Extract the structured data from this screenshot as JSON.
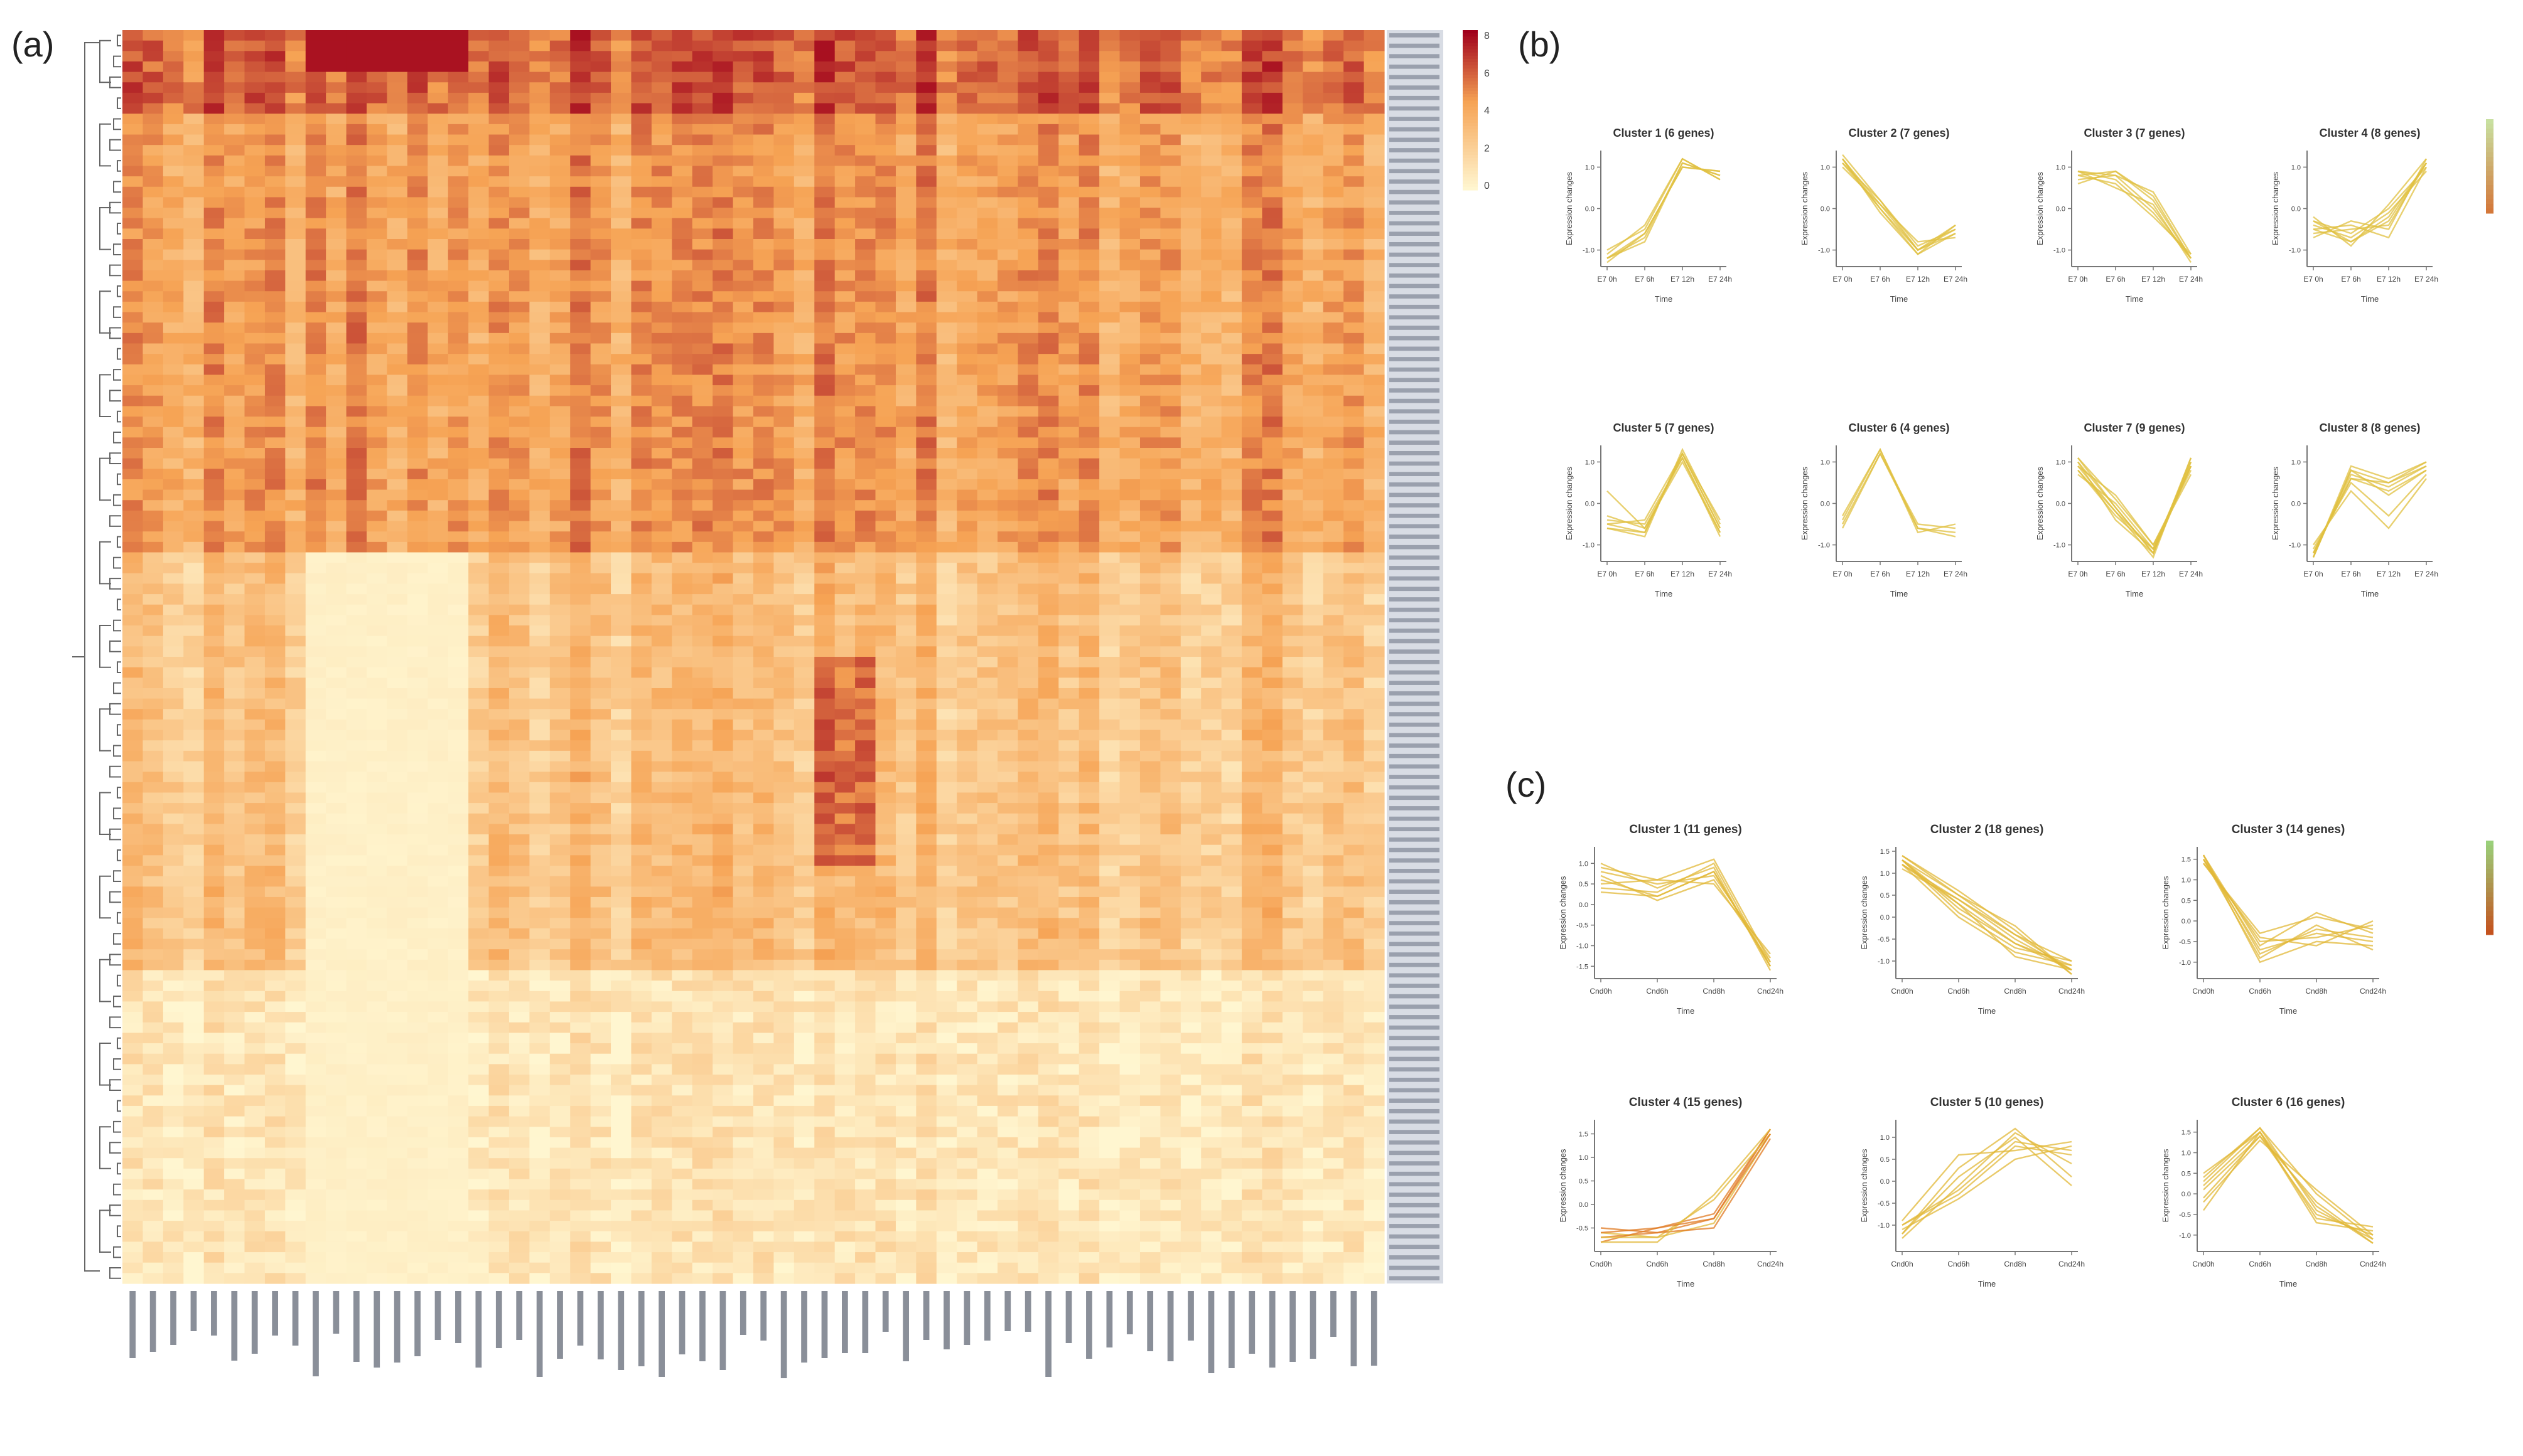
{
  "panels": {
    "a": "(a)",
    "b": "(b)",
    "c": "(c)"
  },
  "colors": {
    "heat_low": "#fff6d0",
    "heat_mid": "#f6a354",
    "heat_high": "#a0001b",
    "line_b": "#e0c040",
    "line_c": "#e2b838",
    "line_c_dark": "#e07a22"
  },
  "heatmap": {
    "type": "heatmap",
    "n_rows": 120,
    "n_cols": 62,
    "legend_ticks": [
      "8",
      "6",
      "4",
      "2",
      "0"
    ],
    "dendrogram": "rows"
  },
  "chart_data": [
    {
      "type": "line",
      "panel": "b",
      "title": "Cluster 1 (6 genes)",
      "xlabel": "Time",
      "ylabel": "Expression changes",
      "categories": [
        "E7 0h",
        "E7 6h",
        "E7 12h",
        "E7 24h"
      ],
      "yticks": [
        "1.0",
        "0.0",
        "-1.0"
      ],
      "ylim": [
        -1.4,
        1.4
      ],
      "series": [
        {
          "values": [
            -1.2,
            -0.7,
            1.1,
            0.8
          ]
        },
        {
          "values": [
            -1.1,
            -0.4,
            1.2,
            0.7
          ]
        },
        {
          "values": [
            -1.3,
            -0.6,
            1.0,
            0.9
          ]
        },
        {
          "values": [
            -1.2,
            -0.8,
            1.1,
            0.8
          ]
        },
        {
          "values": [
            -1.0,
            -0.5,
            1.2,
            0.7
          ]
        },
        {
          "values": [
            -1.2,
            -0.6,
            1.0,
            0.9
          ]
        }
      ]
    },
    {
      "type": "line",
      "panel": "b",
      "title": "Cluster 2 (7 genes)",
      "xlabel": "Time",
      "ylabel": "Expression changes",
      "categories": [
        "E7 0h",
        "E7 6h",
        "E7 12h",
        "E7 24h"
      ],
      "yticks": [
        "1.0",
        "0.0",
        "-1.0"
      ],
      "ylim": [
        -1.4,
        1.4
      ],
      "series": [
        {
          "values": [
            1.2,
            0.1,
            -1.0,
            -0.4
          ]
        },
        {
          "values": [
            1.1,
            0.0,
            -1.1,
            -0.6
          ]
        },
        {
          "values": [
            1.3,
            0.2,
            -0.9,
            -0.5
          ]
        },
        {
          "values": [
            1.2,
            -0.1,
            -1.1,
            -0.4
          ]
        },
        {
          "values": [
            1.0,
            0.1,
            -0.8,
            -0.7
          ]
        },
        {
          "values": [
            1.2,
            0.0,
            -1.0,
            -0.5
          ]
        },
        {
          "values": [
            1.1,
            0.2,
            -1.0,
            -0.6
          ]
        }
      ]
    },
    {
      "type": "line",
      "panel": "b",
      "title": "Cluster 3 (7 genes)",
      "xlabel": "Time",
      "ylabel": "Expression changes",
      "categories": [
        "E7 0h",
        "E7 6h",
        "E7 12h",
        "E7 24h"
      ],
      "yticks": [
        "1.0",
        "0.0",
        "-1.0"
      ],
      "ylim": [
        -1.4,
        1.4
      ],
      "series": [
        {
          "values": [
            0.8,
            0.9,
            0.2,
            -1.2
          ]
        },
        {
          "values": [
            0.9,
            0.7,
            -0.1,
            -1.2
          ]
        },
        {
          "values": [
            0.7,
            0.8,
            0.4,
            -1.1
          ]
        },
        {
          "values": [
            0.9,
            0.5,
            0.1,
            -1.3
          ]
        },
        {
          "values": [
            0.6,
            0.9,
            0.3,
            -1.2
          ]
        },
        {
          "values": [
            0.8,
            0.6,
            -0.2,
            -1.1
          ]
        },
        {
          "values": [
            0.9,
            0.8,
            0.0,
            -1.2
          ]
        }
      ]
    },
    {
      "type": "line",
      "panel": "b",
      "title": "Cluster 4 (8 genes)",
      "xlabel": "Time",
      "ylabel": "Expression changes",
      "categories": [
        "E7 0h",
        "E7 6h",
        "E7 12h",
        "E7 24h"
      ],
      "yticks": [
        "1.0",
        "0.0",
        "-1.0"
      ],
      "ylim": [
        -1.4,
        1.4
      ],
      "series": [
        {
          "values": [
            -0.3,
            -0.8,
            -0.2,
            1.1
          ]
        },
        {
          "values": [
            -0.5,
            -0.4,
            -0.7,
            1.0
          ]
        },
        {
          "values": [
            -0.2,
            -0.9,
            0.1,
            1.2
          ]
        },
        {
          "values": [
            -0.6,
            -0.5,
            -0.4,
            1.1
          ]
        },
        {
          "values": [
            -0.4,
            -0.7,
            -0.1,
            0.9
          ]
        },
        {
          "values": [
            -0.7,
            -0.3,
            -0.5,
            1.2
          ]
        },
        {
          "values": [
            -0.3,
            -0.6,
            0.0,
            1.0
          ]
        },
        {
          "values": [
            -0.5,
            -0.8,
            -0.3,
            1.1
          ]
        }
      ]
    },
    {
      "type": "line",
      "panel": "b",
      "title": "Cluster 5 (7 genes)",
      "xlabel": "Time",
      "ylabel": "Expression changes",
      "categories": [
        "E7 0h",
        "E7 6h",
        "E7 12h",
        "E7 24h"
      ],
      "yticks": [
        "1.0",
        "0.0",
        "-1.0"
      ],
      "ylim": [
        -1.4,
        1.4
      ],
      "series": [
        {
          "values": [
            -0.5,
            -0.7,
            1.2,
            -0.6
          ]
        },
        {
          "values": [
            -0.4,
            -0.5,
            1.1,
            -0.8
          ]
        },
        {
          "values": [
            -0.6,
            -0.8,
            1.3,
            -0.5
          ]
        },
        {
          "values": [
            -0.3,
            -0.6,
            1.0,
            -0.7
          ]
        },
        {
          "values": [
            -0.5,
            -0.4,
            1.2,
            -0.6
          ]
        },
        {
          "values": [
            0.3,
            -0.6,
            1.1,
            -0.7
          ]
        },
        {
          "values": [
            -0.6,
            -0.7,
            1.2,
            -0.4
          ]
        }
      ]
    },
    {
      "type": "line",
      "panel": "b",
      "title": "Cluster 6 (4 genes)",
      "xlabel": "Time",
      "ylabel": "Expression changes",
      "categories": [
        "E7 0h",
        "E7 6h",
        "E7 12h",
        "E7 24h"
      ],
      "yticks": [
        "1.0",
        "0.0",
        "-1.0"
      ],
      "ylim": [
        -1.4,
        1.4
      ],
      "series": [
        {
          "values": [
            -0.4,
            1.3,
            -0.6,
            -0.7
          ]
        },
        {
          "values": [
            -0.6,
            1.2,
            -0.5,
            -0.6
          ]
        },
        {
          "values": [
            -0.3,
            1.3,
            -0.7,
            -0.5
          ]
        },
        {
          "values": [
            -0.5,
            1.2,
            -0.6,
            -0.8
          ]
        }
      ]
    },
    {
      "type": "line",
      "panel": "b",
      "title": "Cluster 7 (9 genes)",
      "xlabel": "Time",
      "ylabel": "Expression changes",
      "categories": [
        "E7 0h",
        "E7 6h",
        "E7 12h",
        "E7 24h"
      ],
      "yticks": [
        "1.0",
        "0.0",
        "-1.0"
      ],
      "ylim": [
        -1.4,
        1.4
      ],
      "series": [
        {
          "values": [
            1.0,
            -0.1,
            -1.2,
            0.9
          ]
        },
        {
          "values": [
            0.8,
            -0.3,
            -1.1,
            1.0
          ]
        },
        {
          "values": [
            1.1,
            0.1,
            -1.0,
            0.8
          ]
        },
        {
          "values": [
            0.9,
            -0.2,
            -1.3,
            1.1
          ]
        },
        {
          "values": [
            0.7,
            0.0,
            -1.1,
            0.9
          ]
        },
        {
          "values": [
            1.0,
            -0.4,
            -1.2,
            1.0
          ]
        },
        {
          "values": [
            0.9,
            0.2,
            -1.0,
            0.7
          ]
        },
        {
          "values": [
            1.1,
            -0.1,
            -1.2,
            1.1
          ]
        },
        {
          "values": [
            0.8,
            -0.2,
            -1.1,
            0.9
          ]
        }
      ]
    },
    {
      "type": "line",
      "panel": "b",
      "title": "Cluster 8 (8 genes)",
      "xlabel": "Time",
      "ylabel": "Expression changes",
      "categories": [
        "E7 0h",
        "E7 6h",
        "E7 12h",
        "E7 24h"
      ],
      "yticks": [
        "1.0",
        "0.0",
        "-1.0"
      ],
      "ylim": [
        -1.4,
        1.4
      ],
      "series": [
        {
          "values": [
            -1.3,
            0.8,
            0.5,
            0.9
          ]
        },
        {
          "values": [
            -1.2,
            0.6,
            0.3,
            0.8
          ]
        },
        {
          "values": [
            -1.3,
            0.9,
            0.6,
            1.0
          ]
        },
        {
          "values": [
            -1.1,
            0.5,
            -0.3,
            0.7
          ]
        },
        {
          "values": [
            -1.2,
            0.7,
            0.4,
            0.9
          ]
        },
        {
          "values": [
            -1.0,
            0.3,
            -0.6,
            0.6
          ]
        },
        {
          "values": [
            -1.3,
            0.8,
            0.2,
            0.8
          ]
        },
        {
          "values": [
            -1.2,
            0.6,
            0.5,
            1.0
          ]
        }
      ]
    },
    {
      "type": "line",
      "panel": "c",
      "title": "Cluster 1 (11 genes)",
      "xlabel": "Time",
      "ylabel": "Expression changes",
      "categories": [
        "Cnd0h",
        "Cnd6h",
        "Cnd8h",
        "Cnd24h"
      ],
      "yticks": [
        "1.0",
        "0.5",
        "0.0",
        "-0.5",
        "-1.0",
        "-1.5"
      ],
      "ylim": [
        -1.8,
        1.4
      ],
      "series": [
        {
          "values": [
            0.9,
            0.6,
            1.1,
            -1.4
          ]
        },
        {
          "values": [
            0.6,
            0.2,
            0.8,
            -1.5
          ]
        },
        {
          "values": [
            0.8,
            0.5,
            0.7,
            -1.3
          ]
        },
        {
          "values": [
            0.4,
            0.3,
            1.0,
            -1.5
          ]
        },
        {
          "values": [
            0.7,
            0.1,
            0.6,
            -1.4
          ]
        },
        {
          "values": [
            1.0,
            0.4,
            0.9,
            -1.6
          ]
        },
        {
          "values": [
            0.5,
            0.6,
            0.5,
            -1.2
          ]
        },
        {
          "values": [
            0.3,
            0.2,
            0.8,
            -1.5
          ]
        }
      ]
    },
    {
      "type": "line",
      "panel": "c",
      "title": "Cluster 2 (18 genes)",
      "xlabel": "Time",
      "ylabel": "Expression changes",
      "categories": [
        "Cnd0h",
        "Cnd6h",
        "Cnd8h",
        "Cnd24h"
      ],
      "yticks": [
        "1.5",
        "1.0",
        "0.5",
        "0.0",
        "-0.5",
        "-1.0"
      ],
      "ylim": [
        -1.4,
        1.6
      ],
      "series": [
        {
          "values": [
            1.3,
            0.5,
            -0.4,
            -1.2
          ]
        },
        {
          "values": [
            1.2,
            0.3,
            -0.6,
            -1.1
          ]
        },
        {
          "values": [
            1.4,
            0.6,
            -0.3,
            -1.3
          ]
        },
        {
          "values": [
            1.3,
            0.1,
            -0.7,
            -1.0
          ]
        },
        {
          "values": [
            1.1,
            0.4,
            -0.5,
            -1.2
          ]
        },
        {
          "values": [
            1.2,
            0.0,
            -0.8,
            -1.1
          ]
        },
        {
          "values": [
            1.4,
            0.5,
            -0.2,
            -1.3
          ]
        },
        {
          "values": [
            1.3,
            0.2,
            -0.6,
            -1.2
          ]
        },
        {
          "values": [
            1.2,
            0.4,
            -0.4,
            -1.0
          ]
        },
        {
          "values": [
            1.3,
            0.3,
            -0.9,
            -1.2
          ]
        }
      ]
    },
    {
      "type": "line",
      "panel": "c",
      "title": "Cluster 3 (14 genes)",
      "xlabel": "Time",
      "ylabel": "Expression changes",
      "categories": [
        "Cnd0h",
        "Cnd6h",
        "Cnd8h",
        "Cnd24h"
      ],
      "yticks": [
        "1.5",
        "1.0",
        "0.5",
        "0.0",
        "-0.5",
        "-1.0"
      ],
      "ylim": [
        -1.4,
        1.8
      ],
      "series": [
        {
          "values": [
            1.6,
            -0.8,
            -0.2,
            -0.4
          ]
        },
        {
          "values": [
            1.5,
            -0.5,
            -0.4,
            -0.1
          ]
        },
        {
          "values": [
            1.6,
            -1.0,
            -0.5,
            -0.6
          ]
        },
        {
          "values": [
            1.4,
            -0.3,
            0.1,
            -0.2
          ]
        },
        {
          "values": [
            1.5,
            -0.7,
            -0.3,
            -0.5
          ]
        },
        {
          "values": [
            1.6,
            -0.6,
            0.2,
            -0.3
          ]
        },
        {
          "values": [
            1.5,
            -0.9,
            -0.1,
            -0.7
          ]
        },
        {
          "values": [
            1.4,
            -0.4,
            -0.6,
            0.0
          ]
        }
      ]
    },
    {
      "type": "line",
      "panel": "c",
      "title": "Cluster 4 (15 genes)",
      "xlabel": "Time",
      "ylabel": "Expression changes",
      "categories": [
        "Cnd0h",
        "Cnd6h",
        "Cnd8h",
        "Cnd24h"
      ],
      "yticks": [
        "1.5",
        "1.0",
        "0.5",
        "0.0",
        "-0.5"
      ],
      "ylim": [
        -1.0,
        1.8
      ],
      "series": [
        {
          "values": [
            -0.7,
            -0.6,
            -0.3,
            1.6
          ]
        },
        {
          "values": [
            -0.6,
            -0.7,
            -0.4,
            1.5
          ]
        },
        {
          "values": [
            -0.8,
            -0.5,
            -0.2,
            1.6
          ]
        },
        {
          "values": [
            -0.7,
            -0.7,
            0.1,
            1.5
          ]
        },
        {
          "values": [
            -0.5,
            -0.6,
            -0.5,
            1.4
          ]
        },
        {
          "values": [
            -0.8,
            -0.8,
            0.2,
            1.6
          ]
        },
        {
          "values": [
            -0.6,
            -0.5,
            -0.3,
            1.5
          ]
        }
      ]
    },
    {
      "type": "line",
      "panel": "c",
      "title": "Cluster 5 (10 genes)",
      "xlabel": "Time",
      "ylabel": "Expression changes",
      "categories": [
        "Cnd0h",
        "Cnd6h",
        "Cnd8h",
        "Cnd24h"
      ],
      "yticks": [
        "1.0",
        "0.5",
        "0.0",
        "-0.5",
        "-1.0"
      ],
      "ylim": [
        -1.6,
        1.4
      ],
      "series": [
        {
          "values": [
            -1.2,
            0.3,
            1.2,
            0.1
          ]
        },
        {
          "values": [
            -1.0,
            -0.3,
            0.8,
            0.6
          ]
        },
        {
          "values": [
            -1.3,
            -0.1,
            1.1,
            0.4
          ]
        },
        {
          "values": [
            -0.9,
            0.6,
            0.7,
            0.9
          ]
        },
        {
          "values": [
            -1.1,
            -0.4,
            0.5,
            0.8
          ]
        },
        {
          "values": [
            -1.2,
            0.1,
            1.0,
            -0.1
          ]
        },
        {
          "values": [
            -1.0,
            -0.2,
            0.9,
            0.7
          ]
        }
      ]
    },
    {
      "type": "line",
      "panel": "c",
      "title": "Cluster 6 (16 genes)",
      "xlabel": "Time",
      "ylabel": "Expression changes",
      "categories": [
        "Cnd0h",
        "Cnd6h",
        "Cnd8h",
        "Cnd24h"
      ],
      "yticks": [
        "1.5",
        "1.0",
        "0.5",
        "0.0",
        "-0.5",
        "-1.0"
      ],
      "ylim": [
        -1.4,
        1.8
      ],
      "series": [
        {
          "values": [
            0.2,
            1.5,
            -0.3,
            -1.2
          ]
        },
        {
          "values": [
            -0.1,
            1.4,
            -0.5,
            -1.0
          ]
        },
        {
          "values": [
            0.4,
            1.6,
            0.0,
            -1.1
          ]
        },
        {
          "values": [
            -0.4,
            1.5,
            -0.7,
            -0.9
          ]
        },
        {
          "values": [
            0.1,
            1.4,
            -0.2,
            -1.2
          ]
        },
        {
          "values": [
            0.5,
            1.5,
            -0.6,
            -0.8
          ]
        },
        {
          "values": [
            -0.2,
            1.3,
            0.1,
            -1.0
          ]
        },
        {
          "values": [
            0.3,
            1.6,
            -0.4,
            -1.1
          ]
        }
      ]
    }
  ]
}
